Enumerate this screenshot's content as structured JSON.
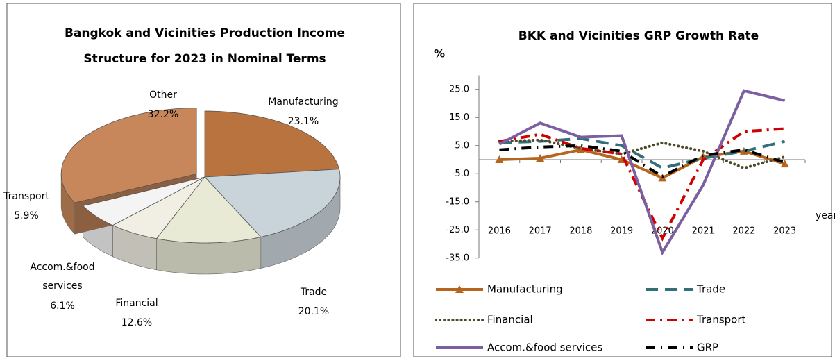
{
  "chart_data": [
    {
      "type": "pie",
      "title": [
        "Bangkok and Vicinities Production Income",
        "Structure for 2023 in Nominal Terms"
      ],
      "categories": [
        "Manufacturing",
        "Trade",
        "Financial",
        "Accom.&food services",
        "Transport",
        "Other"
      ],
      "values": [
        23.1,
        20.1,
        12.6,
        6.1,
        5.9,
        32.2
      ],
      "value_labels": [
        "23.1%",
        "20.1%",
        "12.6%",
        "6.1%",
        "5.9%",
        "32.2%"
      ],
      "colors": [
        "#b8733f",
        "#c9d3da",
        "#e8ead6",
        "#f1efe4",
        "#f4f4f4",
        "#c7875a"
      ]
    },
    {
      "type": "line",
      "title": "BKK and Vicinities GRP Growth Rate",
      "ylabel": "%",
      "xlabel": "year",
      "categories": [
        "2016",
        "2017",
        "2018",
        "2019",
        "2020",
        "2021",
        "2022",
        "2023"
      ],
      "ylim": [
        -35,
        30
      ],
      "yticks": [
        {
          "value": 25,
          "label": "25.0"
        },
        {
          "value": 15,
          "label": "15.0"
        },
        {
          "value": 5,
          "label": "5.0"
        },
        {
          "value": -5,
          "label": "-5.0"
        },
        {
          "value": -15,
          "label": "-15.0"
        },
        {
          "value": -25,
          "label": "-25.0"
        },
        {
          "value": -35,
          "label": "-35.0"
        }
      ],
      "series": [
        {
          "name": "Manufacturing",
          "color": "#b5651d",
          "line_style": "solid",
          "marker": "triangle",
          "values": [
            0,
            0.5,
            3.5,
            0,
            -6.5,
            1,
            3,
            -1.5
          ]
        },
        {
          "name": "Trade",
          "color": "#31707a",
          "line_style": "dashed",
          "values": [
            6,
            6.5,
            7.5,
            5,
            -3,
            0.5,
            3,
            6.5
          ]
        },
        {
          "name": "Financial",
          "color": "#4f4a2a",
          "line_style": "dotted",
          "values": [
            6.5,
            7,
            4,
            2,
            6,
            3,
            -3,
            1
          ]
        },
        {
          "name": "Transport",
          "color": "#d00000",
          "line_style": "dash-dot",
          "values": [
            6.5,
            9,
            4,
            2,
            -28,
            0,
            10,
            11
          ]
        },
        {
          "name": "Accom.&food services",
          "color": "#7c5fa0",
          "line_style": "solid",
          "values": [
            5.5,
            13,
            8,
            8.5,
            -33,
            -9,
            24.5,
            21
          ]
        },
        {
          "name": "GRP",
          "color": "#000000",
          "line_style": "dash-dot-black",
          "values": [
            3.5,
            4.5,
            5,
            3,
            -6,
            1.5,
            3.5,
            -1
          ]
        }
      ]
    }
  ]
}
